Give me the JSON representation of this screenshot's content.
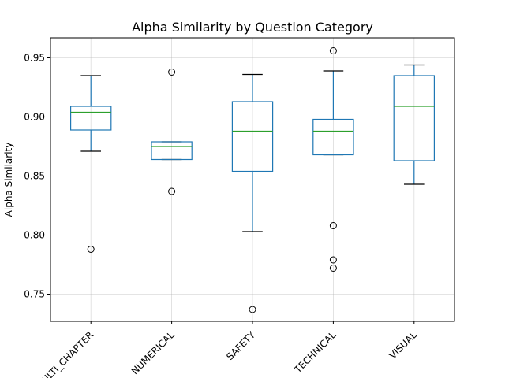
{
  "chart_data": {
    "type": "box",
    "title": "Alpha Similarity by Question Category",
    "ylabel": "Alpha Similarity",
    "xlabel": "",
    "ylim": [
      0.727,
      0.967
    ],
    "yticks": [
      0.75,
      0.8,
      0.85,
      0.9,
      0.95
    ],
    "ytick_labels": [
      "0.75",
      "0.80",
      "0.85",
      "0.90",
      "0.95"
    ],
    "grid": true,
    "categories": [
      "MULTI_CHAPTER",
      "NUMERICAL",
      "SAFETY",
      "TECHNICAL",
      "VISUAL"
    ],
    "boxes": [
      {
        "category": "MULTI_CHAPTER",
        "whisker_low": 0.871,
        "q1": 0.889,
        "median": 0.904,
        "q3": 0.909,
        "whisker_high": 0.935,
        "outliers": [
          0.788
        ]
      },
      {
        "category": "NUMERICAL",
        "whisker_low": 0.864,
        "q1": 0.864,
        "median": 0.875,
        "q3": 0.879,
        "whisker_high": 0.879,
        "outliers": [
          0.938,
          0.837
        ]
      },
      {
        "category": "SAFETY",
        "whisker_low": 0.803,
        "q1": 0.854,
        "median": 0.888,
        "q3": 0.913,
        "whisker_high": 0.936,
        "outliers": [
          0.737
        ]
      },
      {
        "category": "TECHNICAL",
        "whisker_low": 0.868,
        "q1": 0.868,
        "median": 0.888,
        "q3": 0.898,
        "whisker_high": 0.939,
        "outliers": [
          0.956,
          0.808,
          0.779,
          0.772
        ]
      },
      {
        "category": "VISUAL",
        "whisker_low": 0.843,
        "q1": 0.863,
        "median": 0.909,
        "q3": 0.935,
        "whisker_high": 0.944,
        "outliers": []
      }
    ],
    "colors": {
      "box": "#1f77b4",
      "median": "#2ca02c",
      "grid": "#b0b0b0",
      "axis": "#000000"
    }
  }
}
